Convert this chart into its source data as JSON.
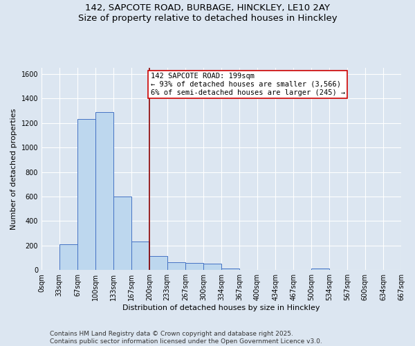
{
  "title_line1": "142, SAPCOTE ROAD, BURBAGE, HINCKLEY, LE10 2AY",
  "title_line2": "Size of property relative to detached houses in Hinckley",
  "xlabel": "Distribution of detached houses by size in Hinckley",
  "ylabel": "Number of detached properties",
  "bin_edges": [
    0,
    33,
    67,
    100,
    133,
    167,
    200,
    233,
    267,
    300,
    334,
    367,
    400,
    434,
    467,
    500,
    534,
    567,
    600,
    634,
    667
  ],
  "bin_labels": [
    "0sqm",
    "33sqm",
    "67sqm",
    "100sqm",
    "133sqm",
    "167sqm",
    "200sqm",
    "233sqm",
    "267sqm",
    "300sqm",
    "334sqm",
    "367sqm",
    "400sqm",
    "434sqm",
    "467sqm",
    "500sqm",
    "534sqm",
    "567sqm",
    "600sqm",
    "634sqm",
    "667sqm"
  ],
  "counts": [
    0,
    210,
    1230,
    1290,
    600,
    230,
    115,
    65,
    55,
    50,
    10,
    0,
    0,
    0,
    0,
    10,
    0,
    0,
    0,
    0
  ],
  "bar_color": "#bdd7ee",
  "bar_edge_color": "#4472c4",
  "property_value": 200,
  "property_line_color": "#8b0000",
  "annotation_text": "142 SAPCOTE ROAD: 199sqm\n← 93% of detached houses are smaller (3,566)\n6% of semi-detached houses are larger (245) →",
  "annotation_box_color": "#ffffff",
  "annotation_box_edge": "#cc0000",
  "ylim": [
    0,
    1650
  ],
  "yticks": [
    0,
    200,
    400,
    600,
    800,
    1000,
    1200,
    1400,
    1600
  ],
  "background_color": "#dce6f1",
  "footer_text": "Contains HM Land Registry data © Crown copyright and database right 2025.\nContains public sector information licensed under the Open Government Licence v3.0.",
  "title_fontsize": 9.5,
  "axis_fontsize": 8,
  "tick_fontsize": 7,
  "footer_fontsize": 6.5,
  "annot_fontsize": 7.5
}
